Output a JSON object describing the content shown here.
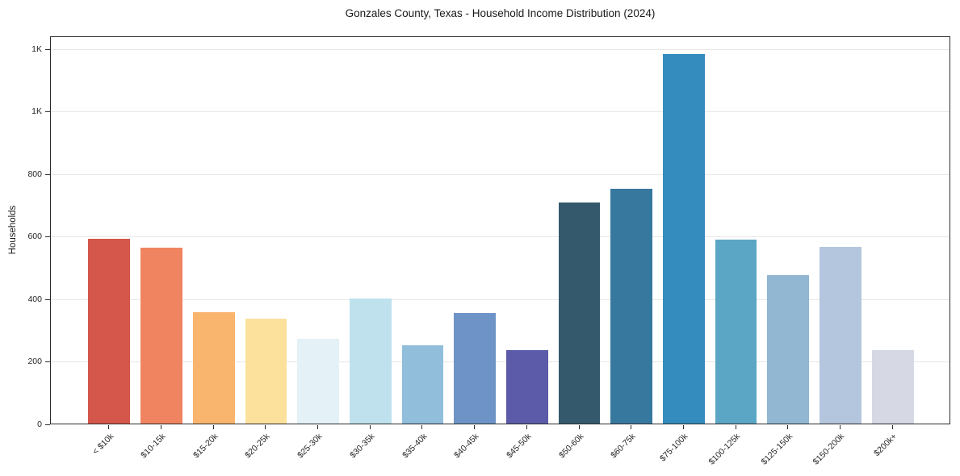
{
  "chart_data": {
    "type": "bar",
    "title": "Gonzales County, Texas - Household Income Distribution (2024)",
    "xlabel": "",
    "ylabel": "Households",
    "categories": [
      "< $10k",
      "$10-15k",
      "$15-20k",
      "$20-25k",
      "$25-30k",
      "$30-35k",
      "$35-40k",
      "$40-45k",
      "$45-50k",
      "$50-60k",
      "$60-75k",
      "$75-100k",
      "$100-125k",
      "$125-150k",
      "$150-200k",
      "$200k+"
    ],
    "values": [
      590,
      563,
      356,
      334,
      271,
      399,
      251,
      352,
      234,
      706,
      749,
      1180,
      588,
      475,
      565,
      235
    ],
    "bar_colors": [
      "#d5564b",
      "#f08460",
      "#f9b46d",
      "#fce19c",
      "#e4f1f7",
      "#bee1ed",
      "#90bedb",
      "#6e94c7",
      "#5c5ba9",
      "#34596c",
      "#37789f",
      "#348bbd",
      "#5ba6c5",
      "#91b7d3",
      "#b4c6de",
      "#d6d9e4"
    ],
    "ylim": [
      0,
      1240
    ],
    "y_ticks": {
      "values": [
        0,
        200,
        400,
        600,
        800,
        1000,
        1200
      ],
      "labels": [
        "0",
        "200",
        "400",
        "600",
        "800",
        "1K",
        "1K"
      ]
    },
    "grid": "horizontal",
    "legend": "none",
    "colors": {
      "background": "#ffffff",
      "spine": "#2a2a2a",
      "gridline": "#e7e7e7",
      "text": "#262626"
    }
  }
}
